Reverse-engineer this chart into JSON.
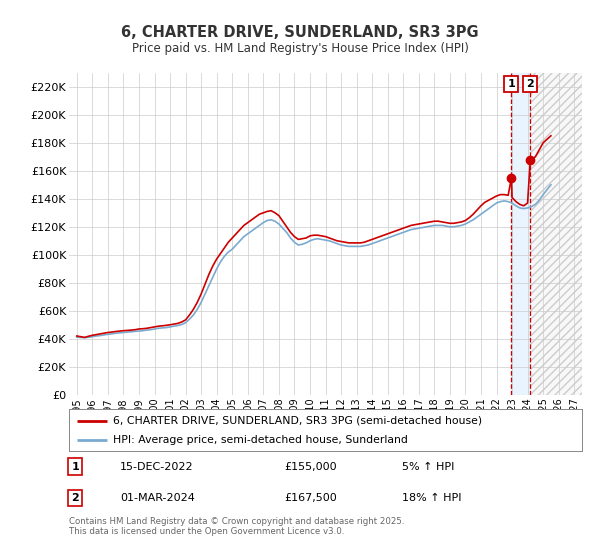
{
  "title": "6, CHARTER DRIVE, SUNDERLAND, SR3 3PG",
  "subtitle": "Price paid vs. HM Land Registry's House Price Index (HPI)",
  "legend_line1": "6, CHARTER DRIVE, SUNDERLAND, SR3 3PG (semi-detached house)",
  "legend_line2": "HPI: Average price, semi-detached house, Sunderland",
  "annotation_footnote": "Contains HM Land Registry data © Crown copyright and database right 2025.\nThis data is licensed under the Open Government Licence v3.0.",
  "marker1_date_label": "15-DEC-2022",
  "marker1_price_label": "£155,000",
  "marker1_hpi_label": "5% ↑ HPI",
  "marker2_date_label": "01-MAR-2024",
  "marker2_price_label": "£167,500",
  "marker2_hpi_label": "18% ↑ HPI",
  "marker1_x": 2022.96,
  "marker1_y": 155000,
  "marker2_x": 2024.17,
  "marker2_y": 167500,
  "vline1_x": 2022.96,
  "vline2_x": 2024.17,
  "red_color": "#cc0000",
  "blue_color": "#7aaad0",
  "ylim": [
    0,
    230000
  ],
  "xlim": [
    1994.5,
    2027.5
  ],
  "yticks": [
    0,
    20000,
    40000,
    60000,
    80000,
    100000,
    120000,
    140000,
    160000,
    180000,
    200000,
    220000
  ],
  "ytick_labels": [
    "£0",
    "£20K",
    "£40K",
    "£60K",
    "£80K",
    "£100K",
    "£120K",
    "£140K",
    "£160K",
    "£180K",
    "£200K",
    "£220K"
  ],
  "xtick_years": [
    1995,
    1996,
    1997,
    1998,
    1999,
    2000,
    2001,
    2002,
    2003,
    2004,
    2005,
    2006,
    2007,
    2008,
    2009,
    2010,
    2011,
    2012,
    2013,
    2014,
    2015,
    2016,
    2017,
    2018,
    2019,
    2020,
    2021,
    2022,
    2023,
    2024,
    2025,
    2026,
    2027
  ],
  "hpi_data": [
    [
      1995.0,
      41200
    ],
    [
      1995.25,
      41000
    ],
    [
      1995.5,
      40800
    ],
    [
      1995.75,
      41100
    ],
    [
      1996.0,
      41500
    ],
    [
      1996.25,
      42000
    ],
    [
      1996.5,
      42300
    ],
    [
      1996.75,
      42800
    ],
    [
      1997.0,
      43200
    ],
    [
      1997.25,
      43500
    ],
    [
      1997.5,
      44000
    ],
    [
      1997.75,
      44200
    ],
    [
      1998.0,
      44500
    ],
    [
      1998.25,
      44800
    ],
    [
      1998.5,
      45000
    ],
    [
      1998.75,
      45300
    ],
    [
      1999.0,
      45500
    ],
    [
      1999.25,
      45800
    ],
    [
      1999.5,
      46200
    ],
    [
      1999.75,
      46500
    ],
    [
      2000.0,
      47000
    ],
    [
      2000.25,
      47500
    ],
    [
      2000.5,
      47800
    ],
    [
      2000.75,
      48000
    ],
    [
      2001.0,
      48500
    ],
    [
      2001.25,
      49000
    ],
    [
      2001.5,
      49500
    ],
    [
      2001.75,
      50200
    ],
    [
      2002.0,
      51500
    ],
    [
      2002.25,
      54000
    ],
    [
      2002.5,
      57000
    ],
    [
      2002.75,
      61000
    ],
    [
      2003.0,
      66000
    ],
    [
      2003.25,
      72000
    ],
    [
      2003.5,
      78000
    ],
    [
      2003.75,
      84000
    ],
    [
      2004.0,
      90000
    ],
    [
      2004.25,
      95000
    ],
    [
      2004.5,
      99000
    ],
    [
      2004.75,
      102000
    ],
    [
      2005.0,
      104000
    ],
    [
      2005.25,
      107000
    ],
    [
      2005.5,
      110000
    ],
    [
      2005.75,
      113000
    ],
    [
      2006.0,
      115000
    ],
    [
      2006.25,
      117000
    ],
    [
      2006.5,
      119000
    ],
    [
      2006.75,
      121000
    ],
    [
      2007.0,
      123000
    ],
    [
      2007.25,
      124500
    ],
    [
      2007.5,
      125000
    ],
    [
      2007.75,
      124000
    ],
    [
      2008.0,
      122000
    ],
    [
      2008.25,
      119000
    ],
    [
      2008.5,
      116000
    ],
    [
      2008.75,
      112000
    ],
    [
      2009.0,
      109000
    ],
    [
      2009.25,
      107000
    ],
    [
      2009.5,
      107500
    ],
    [
      2009.75,
      108500
    ],
    [
      2010.0,
      110000
    ],
    [
      2010.25,
      111000
    ],
    [
      2010.5,
      111500
    ],
    [
      2010.75,
      111000
    ],
    [
      2011.0,
      110500
    ],
    [
      2011.25,
      110000
    ],
    [
      2011.5,
      109000
    ],
    [
      2011.75,
      108000
    ],
    [
      2012.0,
      107000
    ],
    [
      2012.25,
      106500
    ],
    [
      2012.5,
      106000
    ],
    [
      2012.75,
      106000
    ],
    [
      2013.0,
      106000
    ],
    [
      2013.25,
      106000
    ],
    [
      2013.5,
      106500
    ],
    [
      2013.75,
      107000
    ],
    [
      2014.0,
      108000
    ],
    [
      2014.25,
      109000
    ],
    [
      2014.5,
      110000
    ],
    [
      2014.75,
      111000
    ],
    [
      2015.0,
      112000
    ],
    [
      2015.25,
      113000
    ],
    [
      2015.5,
      114000
    ],
    [
      2015.75,
      115000
    ],
    [
      2016.0,
      116000
    ],
    [
      2016.25,
      117000
    ],
    [
      2016.5,
      118000
    ],
    [
      2016.75,
      118500
    ],
    [
      2017.0,
      119000
    ],
    [
      2017.25,
      119500
    ],
    [
      2017.5,
      120000
    ],
    [
      2017.75,
      120500
    ],
    [
      2018.0,
      121000
    ],
    [
      2018.25,
      121000
    ],
    [
      2018.5,
      121000
    ],
    [
      2018.75,
      120500
    ],
    [
      2019.0,
      120000
    ],
    [
      2019.25,
      120000
    ],
    [
      2019.5,
      120500
    ],
    [
      2019.75,
      121000
    ],
    [
      2020.0,
      122000
    ],
    [
      2020.25,
      123500
    ],
    [
      2020.5,
      125000
    ],
    [
      2020.75,
      127000
    ],
    [
      2021.0,
      129000
    ],
    [
      2021.25,
      131000
    ],
    [
      2021.5,
      133000
    ],
    [
      2021.75,
      135000
    ],
    [
      2022.0,
      137000
    ],
    [
      2022.25,
      138000
    ],
    [
      2022.5,
      138500
    ],
    [
      2022.75,
      138000
    ],
    [
      2023.0,
      137000
    ],
    [
      2023.25,
      135000
    ],
    [
      2023.5,
      133500
    ],
    [
      2023.75,
      133000
    ],
    [
      2024.0,
      133500
    ],
    [
      2024.17,
      134000
    ],
    [
      2024.5,
      136000
    ],
    [
      2024.75,
      139000
    ],
    [
      2025.0,
      143000
    ],
    [
      2025.5,
      150000
    ]
  ],
  "price_data": [
    [
      1995.0,
      42000
    ],
    [
      1995.25,
      41500
    ],
    [
      1995.5,
      41000
    ],
    [
      1995.75,
      41800
    ],
    [
      1996.0,
      42500
    ],
    [
      1996.25,
      43000
    ],
    [
      1996.5,
      43500
    ],
    [
      1996.75,
      44000
    ],
    [
      1997.0,
      44500
    ],
    [
      1997.25,
      44800
    ],
    [
      1997.5,
      45200
    ],
    [
      1997.75,
      45500
    ],
    [
      1998.0,
      45800
    ],
    [
      1998.25,
      46000
    ],
    [
      1998.5,
      46200
    ],
    [
      1998.75,
      46500
    ],
    [
      1999.0,
      47000
    ],
    [
      1999.25,
      47200
    ],
    [
      1999.5,
      47500
    ],
    [
      1999.75,
      48000
    ],
    [
      2000.0,
      48500
    ],
    [
      2000.25,
      49000
    ],
    [
      2000.5,
      49300
    ],
    [
      2000.75,
      49600
    ],
    [
      2001.0,
      50000
    ],
    [
      2001.25,
      50500
    ],
    [
      2001.5,
      51000
    ],
    [
      2001.75,
      52000
    ],
    [
      2002.0,
      53500
    ],
    [
      2002.25,
      57000
    ],
    [
      2002.5,
      61000
    ],
    [
      2002.75,
      66000
    ],
    [
      2003.0,
      72000
    ],
    [
      2003.25,
      79000
    ],
    [
      2003.5,
      86000
    ],
    [
      2003.75,
      92000
    ],
    [
      2004.0,
      97000
    ],
    [
      2004.25,
      101000
    ],
    [
      2004.5,
      105000
    ],
    [
      2004.75,
      109000
    ],
    [
      2005.0,
      112000
    ],
    [
      2005.25,
      115000
    ],
    [
      2005.5,
      118000
    ],
    [
      2005.75,
      121000
    ],
    [
      2006.0,
      123000
    ],
    [
      2006.25,
      125000
    ],
    [
      2006.5,
      127000
    ],
    [
      2006.75,
      129000
    ],
    [
      2007.0,
      130000
    ],
    [
      2007.25,
      131000
    ],
    [
      2007.5,
      131500
    ],
    [
      2007.75,
      130000
    ],
    [
      2008.0,
      128000
    ],
    [
      2008.25,
      124000
    ],
    [
      2008.5,
      120000
    ],
    [
      2008.75,
      116000
    ],
    [
      2009.0,
      113000
    ],
    [
      2009.25,
      111000
    ],
    [
      2009.5,
      111500
    ],
    [
      2009.75,
      112000
    ],
    [
      2010.0,
      113500
    ],
    [
      2010.25,
      114000
    ],
    [
      2010.5,
      114000
    ],
    [
      2010.75,
      113500
    ],
    [
      2011.0,
      113000
    ],
    [
      2011.25,
      112000
    ],
    [
      2011.5,
      111000
    ],
    [
      2011.75,
      110000
    ],
    [
      2012.0,
      109500
    ],
    [
      2012.25,
      109000
    ],
    [
      2012.5,
      108500
    ],
    [
      2012.75,
      108500
    ],
    [
      2013.0,
      108500
    ],
    [
      2013.25,
      108500
    ],
    [
      2013.5,
      109000
    ],
    [
      2013.75,
      110000
    ],
    [
      2014.0,
      111000
    ],
    [
      2014.25,
      112000
    ],
    [
      2014.5,
      113000
    ],
    [
      2014.75,
      114000
    ],
    [
      2015.0,
      115000
    ],
    [
      2015.25,
      116000
    ],
    [
      2015.5,
      117000
    ],
    [
      2015.75,
      118000
    ],
    [
      2016.0,
      119000
    ],
    [
      2016.25,
      120000
    ],
    [
      2016.5,
      121000
    ],
    [
      2016.75,
      121500
    ],
    [
      2017.0,
      122000
    ],
    [
      2017.25,
      122500
    ],
    [
      2017.5,
      123000
    ],
    [
      2017.75,
      123500
    ],
    [
      2018.0,
      124000
    ],
    [
      2018.25,
      124000
    ],
    [
      2018.5,
      123500
    ],
    [
      2018.75,
      123000
    ],
    [
      2019.0,
      122500
    ],
    [
      2019.25,
      122500
    ],
    [
      2019.5,
      123000
    ],
    [
      2019.75,
      123500
    ],
    [
      2020.0,
      124500
    ],
    [
      2020.25,
      126500
    ],
    [
      2020.5,
      129000
    ],
    [
      2020.75,
      132000
    ],
    [
      2021.0,
      135000
    ],
    [
      2021.25,
      137500
    ],
    [
      2021.5,
      139000
    ],
    [
      2021.75,
      140500
    ],
    [
      2022.0,
      142000
    ],
    [
      2022.25,
      143000
    ],
    [
      2022.5,
      143000
    ],
    [
      2022.75,
      142500
    ],
    [
      2022.96,
      155000
    ],
    [
      2023.0,
      141000
    ],
    [
      2023.25,
      138000
    ],
    [
      2023.5,
      136000
    ],
    [
      2023.75,
      135000
    ],
    [
      2024.0,
      137000
    ],
    [
      2024.17,
      167500
    ],
    [
      2024.5,
      170000
    ],
    [
      2024.75,
      175000
    ],
    [
      2025.0,
      180000
    ],
    [
      2025.5,
      185000
    ]
  ]
}
